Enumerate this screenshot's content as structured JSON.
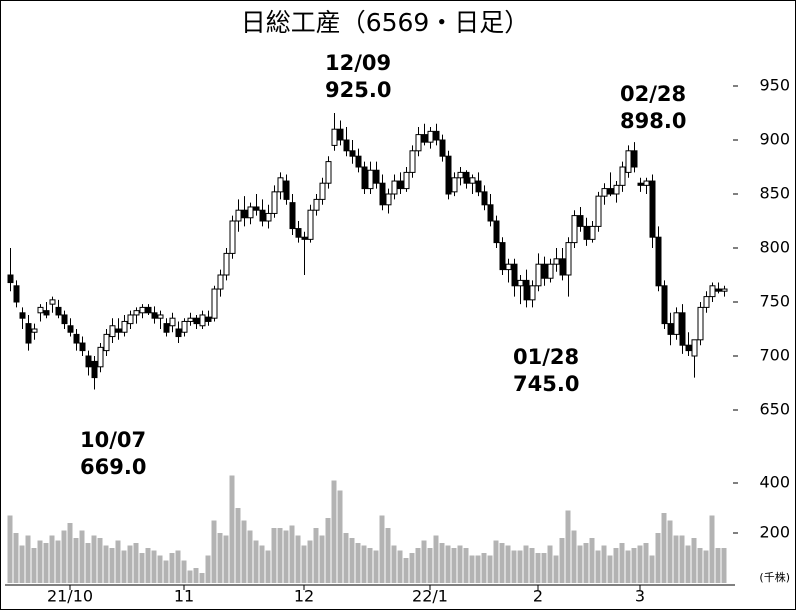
{
  "chart_data": {
    "type": "candlestick",
    "title": "日総工産（6569・日足）",
    "ylim": [
      650,
      950
    ],
    "yticks": [
      650,
      700,
      750,
      800,
      850,
      900,
      950
    ],
    "xticks": [
      {
        "value": 10,
        "label": "21/10"
      },
      {
        "value": 29,
        "label": "11"
      },
      {
        "value": 49,
        "label": "12"
      },
      {
        "value": 70,
        "label": "22/1"
      },
      {
        "value": 88,
        "label": "2"
      },
      {
        "value": 105,
        "label": "3"
      }
    ],
    "up_color": "#ffffff",
    "down_color": "#000000",
    "open": [
      775,
      765,
      740,
      730,
      722,
      740,
      742,
      748,
      745,
      738,
      728,
      720,
      712,
      700,
      695,
      690,
      705,
      718,
      725,
      722,
      730,
      738,
      740,
      745,
      740,
      735,
      730,
      728,
      725,
      722,
      732,
      735,
      728,
      736,
      735,
      762,
      775,
      795,
      825,
      835,
      828,
      838,
      835,
      825,
      832,
      852,
      862,
      842,
      818,
      810,
      808,
      835,
      845,
      860,
      895,
      910,
      900,
      890,
      885,
      875,
      855,
      872,
      860,
      840,
      850,
      862,
      855,
      870,
      890,
      905,
      898,
      908,
      900,
      885,
      852,
      865,
      870,
      860,
      862,
      852,
      840,
      825,
      805,
      780,
      785,
      765,
      770,
      752,
      765,
      785,
      772,
      785,
      790,
      775,
      805,
      830,
      820,
      808,
      820,
      848,
      855,
      850,
      858,
      870,
      890,
      860,
      858,
      862,
      810,
      765,
      730,
      720,
      740,
      710,
      700,
      715,
      745,
      755,
      762,
      760
    ],
    "high": [
      800,
      770,
      745,
      738,
      730,
      748,
      750,
      755,
      752,
      742,
      735,
      725,
      718,
      705,
      700,
      712,
      725,
      735,
      735,
      738,
      742,
      745,
      748,
      748,
      746,
      742,
      735,
      740,
      732,
      735,
      740,
      738,
      742,
      742,
      765,
      780,
      800,
      830,
      845,
      848,
      842,
      850,
      845,
      840,
      858,
      870,
      868,
      850,
      825,
      815,
      840,
      850,
      865,
      885,
      925,
      918,
      912,
      900,
      892,
      880,
      880,
      880,
      868,
      855,
      868,
      870,
      875,
      895,
      912,
      915,
      912,
      915,
      905,
      890,
      870,
      875,
      872,
      868,
      870,
      858,
      850,
      830,
      810,
      790,
      790,
      775,
      780,
      770,
      795,
      792,
      790,
      800,
      800,
      810,
      835,
      838,
      828,
      825,
      852,
      860,
      870,
      862,
      880,
      895,
      898,
      865,
      865,
      868,
      820,
      770,
      740,
      745,
      748,
      722,
      712,
      750,
      760,
      768,
      768,
      765
    ],
    "low": [
      760,
      745,
      725,
      705,
      715,
      732,
      735,
      740,
      735,
      725,
      718,
      705,
      700,
      682,
      669,
      685,
      700,
      712,
      715,
      718,
      725,
      730,
      735,
      738,
      730,
      725,
      718,
      722,
      712,
      718,
      728,
      725,
      725,
      728,
      732,
      755,
      770,
      790,
      815,
      820,
      822,
      830,
      820,
      818,
      828,
      845,
      840,
      812,
      805,
      775,
      805,
      830,
      840,
      855,
      890,
      895,
      885,
      878,
      870,
      850,
      850,
      855,
      835,
      832,
      845,
      850,
      852,
      865,
      885,
      895,
      892,
      895,
      880,
      845,
      848,
      858,
      855,
      850,
      848,
      835,
      820,
      800,
      775,
      768,
      755,
      748,
      745,
      745,
      760,
      765,
      768,
      778,
      770,
      755,
      800,
      815,
      802,
      805,
      815,
      840,
      848,
      842,
      852,
      865,
      870,
      852,
      850,
      800,
      760,
      725,
      710,
      715,
      702,
      700,
      680,
      710,
      740,
      750,
      758,
      755
    ],
    "close": [
      768,
      750,
      735,
      712,
      725,
      745,
      738,
      752,
      738,
      730,
      722,
      712,
      705,
      690,
      680,
      708,
      720,
      728,
      722,
      732,
      738,
      742,
      745,
      740,
      735,
      738,
      722,
      735,
      718,
      732,
      735,
      730,
      738,
      732,
      762,
      775,
      795,
      825,
      835,
      828,
      838,
      835,
      825,
      832,
      852,
      865,
      845,
      818,
      810,
      808,
      835,
      845,
      860,
      880,
      910,
      900,
      890,
      885,
      875,
      855,
      872,
      860,
      840,
      850,
      862,
      855,
      870,
      890,
      905,
      898,
      908,
      900,
      885,
      850,
      865,
      870,
      860,
      865,
      852,
      840,
      825,
      805,
      780,
      785,
      765,
      770,
      752,
      765,
      785,
      772,
      785,
      790,
      775,
      805,
      830,
      820,
      808,
      820,
      848,
      855,
      850,
      858,
      875,
      890,
      875,
      858,
      862,
      810,
      765,
      730,
      720,
      740,
      710,
      705,
      715,
      745,
      755,
      765,
      760,
      762
    ],
    "volume": {
      "ylim": [
        0,
        400
      ],
      "yticks": [
        200,
        400
      ],
      "unit": "(千株)",
      "values": [
        270,
        200,
        150,
        190,
        140,
        170,
        160,
        190,
        170,
        210,
        240,
        180,
        210,
        160,
        190,
        180,
        150,
        140,
        170,
        130,
        150,
        160,
        120,
        140,
        130,
        110,
        90,
        120,
        130,
        90,
        50,
        60,
        40,
        110,
        250,
        200,
        190,
        430,
        300,
        250,
        210,
        170,
        150,
        130,
        220,
        220,
        210,
        230,
        190,
        150,
        170,
        220,
        190,
        260,
        410,
        370,
        200,
        180,
        160,
        150,
        140,
        130,
        270,
        220,
        150,
        130,
        100,
        120,
        140,
        170,
        140,
        190,
        160,
        150,
        140,
        150,
        140,
        110,
        110,
        120,
        110,
        170,
        160,
        150,
        130,
        130,
        150,
        140,
        120,
        120,
        150,
        110,
        180,
        290,
        210,
        150,
        160,
        180,
        130,
        150,
        110,
        140,
        160,
        130,
        140,
        150,
        160,
        110,
        200,
        280,
        250,
        190,
        190,
        150,
        180,
        140,
        130,
        270,
        140,
        140
      ],
      "color": "#b3b3b3"
    },
    "annotations": [
      {
        "date": "12/09",
        "price": "925.0"
      },
      {
        "date": "02/28",
        "price": "898.0"
      },
      {
        "date": "01/28",
        "price": "745.0"
      },
      {
        "date": "10/07",
        "price": "669.0"
      }
    ]
  }
}
